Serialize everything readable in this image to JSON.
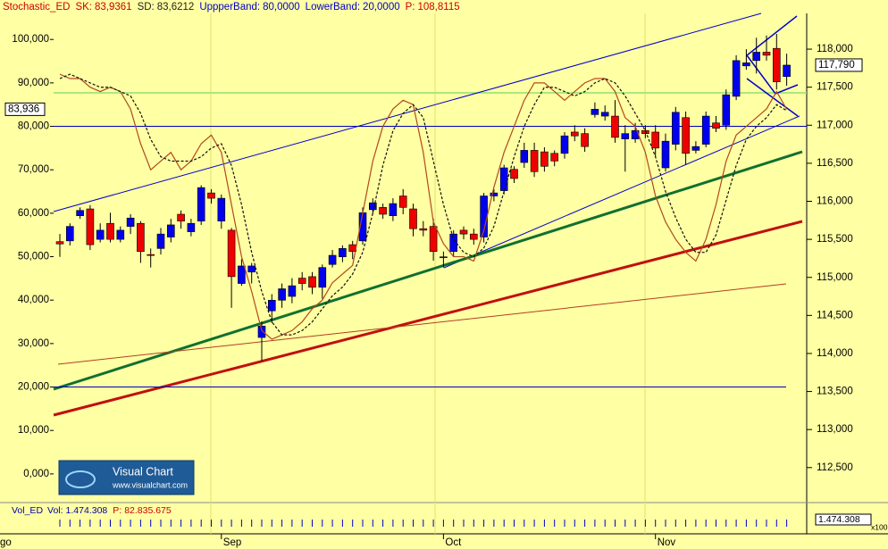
{
  "chart_data": {
    "type": "candlestick",
    "header": {
      "indicator": "Stochastic_ED",
      "indicator_color": "#cc0000",
      "readouts": [
        {
          "label": "SK:",
          "value": 83.9361,
          "value_label": "83,9361",
          "color": "#cc0000"
        },
        {
          "label": "SD:",
          "value": 83.6212,
          "value_label": "83,6212",
          "color": "#222222"
        },
        {
          "label": "UppperBand:",
          "value": 80,
          "value_label": "80,0000",
          "color": "#0000cc"
        },
        {
          "label": "LowerBand:",
          "value": 20,
          "value_label": "20,0000",
          "color": "#0000cc"
        },
        {
          "label": "P:",
          "value": 108.8115,
          "value_label": "108,8115",
          "color": "#cc0000"
        }
      ]
    },
    "categories": [
      null,
      null,
      null,
      null,
      null,
      null,
      null,
      null,
      null,
      null,
      null,
      null,
      null,
      null,
      null,
      null,
      "Sep",
      null,
      null,
      null,
      null,
      null,
      null,
      null,
      null,
      null,
      null,
      null,
      null,
      null,
      null,
      null,
      null,
      null,
      null,
      null,
      null,
      null,
      "Oct",
      null,
      null,
      null,
      null,
      null,
      null,
      null,
      null,
      null,
      null,
      null,
      null,
      null,
      null,
      null,
      null,
      null,
      null,
      null,
      null,
      "Nov",
      null,
      null,
      null,
      null,
      null,
      null,
      null,
      null,
      null,
      null,
      null,
      null,
      null
    ],
    "x_partial_label": "go",
    "candles": {
      "axis": "y2",
      "up_color": "#0000ee",
      "down_color": "#ee0000",
      "open": [
        115470,
        115480,
        115810,
        115900,
        115500,
        115710,
        115500,
        115670,
        115710,
        115300,
        115380,
        115530,
        115830,
        115600,
        115740,
        116110,
        115740,
        115620,
        114920,
        115070,
        114210,
        114560,
        114700,
        114750,
        114990,
        115010,
        114870,
        115170,
        115270,
        115430,
        115480,
        115890,
        115920,
        115810,
        116070,
        115900,
        115640,
        115670,
        115270,
        115340,
        115620,
        115570,
        115530,
        116070,
        116140,
        116420,
        116510,
        116670,
        116650,
        116630,
        116630,
        116910,
        116890,
        117140,
        117120,
        117120,
        116820,
        116820,
        116930,
        116910,
        116440,
        116750,
        117100,
        116670,
        116750,
        117030,
        117000,
        117380,
        117780,
        117850,
        117960,
        118010,
        117640
      ],
      "high": [
        115570,
        115710,
        115920,
        115950,
        115710,
        115850,
        115670,
        115830,
        115740,
        115380,
        115650,
        115770,
        115880,
        115770,
        116210,
        116160,
        116090,
        115650,
        115240,
        115190,
        114420,
        114780,
        114920,
        114990,
        115070,
        115070,
        115170,
        115360,
        115420,
        115480,
        115920,
        116040,
        115970,
        116040,
        116160,
        115970,
        115740,
        115770,
        115340,
        115620,
        115670,
        115640,
        116110,
        116160,
        116480,
        116460,
        116770,
        116770,
        116710,
        116670,
        116910,
        117000,
        116960,
        117300,
        117260,
        117330,
        117000,
        117030,
        117000,
        117000,
        116890,
        117240,
        117180,
        116790,
        117180,
        117120,
        117470,
        117920,
        118000,
        118150,
        118180,
        118200,
        117940
      ],
      "low": [
        115270,
        115420,
        115770,
        115360,
        115460,
        115460,
        115460,
        115570,
        115190,
        115130,
        115300,
        115460,
        115640,
        115540,
        115690,
        115970,
        115640,
        114600,
        114890,
        114920,
        113900,
        114400,
        114600,
        114660,
        114830,
        114780,
        114720,
        115130,
        115200,
        115240,
        115430,
        115830,
        115770,
        115740,
        115830,
        115540,
        115540,
        115220,
        115130,
        115270,
        115500,
        115430,
        115460,
        116000,
        116090,
        116240,
        116440,
        116320,
        116390,
        116460,
        116560,
        116790,
        116650,
        117100,
        117060,
        116770,
        116390,
        116770,
        116830,
        116590,
        116390,
        116670,
        116480,
        116630,
        116710,
        116910,
        116940,
        117330,
        117730,
        117680,
        117850,
        117470,
        117520
      ],
      "close": [
        115440,
        115670,
        115880,
        115430,
        115620,
        115500,
        115620,
        115780,
        115340,
        115290,
        115570,
        115690,
        115740,
        115710,
        116180,
        116040,
        116040,
        115010,
        115150,
        115150,
        114360,
        114700,
        114850,
        114890,
        114920,
        114870,
        115130,
        115290,
        115380,
        115340,
        115850,
        115980,
        115830,
        115970,
        115920,
        115640,
        115620,
        115340,
        115260,
        115570,
        115570,
        115500,
        116070,
        116110,
        116440,
        116300,
        116670,
        116390,
        116460,
        116530,
        116860,
        116860,
        116720,
        117210,
        117170,
        116840,
        116890,
        116930,
        116890,
        116700,
        116790,
        117170,
        116630,
        116720,
        117120,
        116960,
        117400,
        117850,
        117820,
        117960,
        117920,
        117570,
        117790
      ]
    },
    "series": [
      {
        "color": "#b04a1c",
        "dashed": false,
        "values": [
          92,
          91,
          91,
          89,
          88,
          89,
          88,
          84,
          76,
          70,
          72,
          74,
          70,
          72,
          76,
          78,
          74,
          62,
          50,
          42,
          33,
          31,
          32,
          33,
          35,
          38,
          40,
          44,
          46,
          48,
          60,
          72,
          80,
          84,
          86,
          85,
          74,
          58,
          53,
          50,
          50,
          49,
          56,
          66,
          74,
          80,
          86,
          90,
          90,
          88,
          86,
          88,
          90,
          91,
          91,
          88,
          82,
          80,
          74,
          64,
          58,
          54,
          51,
          49,
          54,
          62,
          72,
          78,
          80,
          82,
          84,
          88,
          83.9361
        ]
      },
      {
        "color": "#111111",
        "dashed": true,
        "values": [
          91,
          92,
          91,
          90,
          89,
          89,
          88,
          87,
          83,
          77,
          73,
          72,
          72,
          72,
          73,
          75,
          76,
          71,
          62,
          51,
          42,
          35,
          32,
          32,
          33,
          35,
          38,
          41,
          43,
          46,
          51,
          60,
          71,
          79,
          83,
          85,
          82,
          72,
          62,
          54,
          51,
          50,
          52,
          57,
          65,
          73,
          80,
          85,
          89,
          89,
          88,
          87,
          88,
          90,
          91,
          90,
          87,
          83,
          79,
          73,
          65,
          59,
          54,
          51,
          51,
          55,
          63,
          71,
          77,
          80,
          82,
          85,
          83.6212
        ]
      }
    ],
    "band_color": "#0000bb",
    "ylim": [
      -6.6,
      106
    ],
    "yticks": [
      {
        "value": 0,
        "label": "0,000"
      },
      {
        "value": 10,
        "label": "10,000"
      },
      {
        "value": 20,
        "label": "20,000"
      },
      {
        "value": 30,
        "label": "30,000"
      },
      {
        "value": 40,
        "label": "40,000"
      },
      {
        "value": 50,
        "label": "50,000"
      },
      {
        "value": 60,
        "label": "60,000"
      },
      {
        "value": 70,
        "label": "70,000"
      },
      {
        "value": 80,
        "label": "80,000"
      },
      {
        "value": 90,
        "label": "90,000"
      },
      {
        "value": 100,
        "label": "100,000"
      }
    ],
    "y2lim": [
      112040,
      118470
    ],
    "y2ticks": [
      {
        "value": 112500,
        "label": "112,500"
      },
      {
        "value": 113000,
        "label": "113,000"
      },
      {
        "value": 113500,
        "label": "113,500"
      },
      {
        "value": 114000,
        "label": "114,000"
      },
      {
        "value": 114500,
        "label": "114,500"
      },
      {
        "value": 115000,
        "label": "115,000"
      },
      {
        "value": 115500,
        "label": "115,500"
      },
      {
        "value": 116000,
        "label": "116,000"
      },
      {
        "value": 116500,
        "label": "116,500"
      },
      {
        "value": 117000,
        "label": "117,000"
      },
      {
        "value": 117500,
        "label": "117,500"
      },
      {
        "value": 118000,
        "label": "118,000"
      }
    ],
    "last_indicator": {
      "value": 83.936,
      "label": "83,936"
    },
    "last_price": {
      "value": 117790,
      "label": "117,790"
    },
    "volume": {
      "indicator": "Vol_ED",
      "vol_label": "Vol:",
      "vol_value": "1.474.308",
      "p_label": "P:",
      "p_value": "82.835.675",
      "box_value": "1.474.308",
      "scale": "x100"
    },
    "logo": {
      "title": "Visual Chart",
      "url": "www.visualchart.com"
    }
  }
}
